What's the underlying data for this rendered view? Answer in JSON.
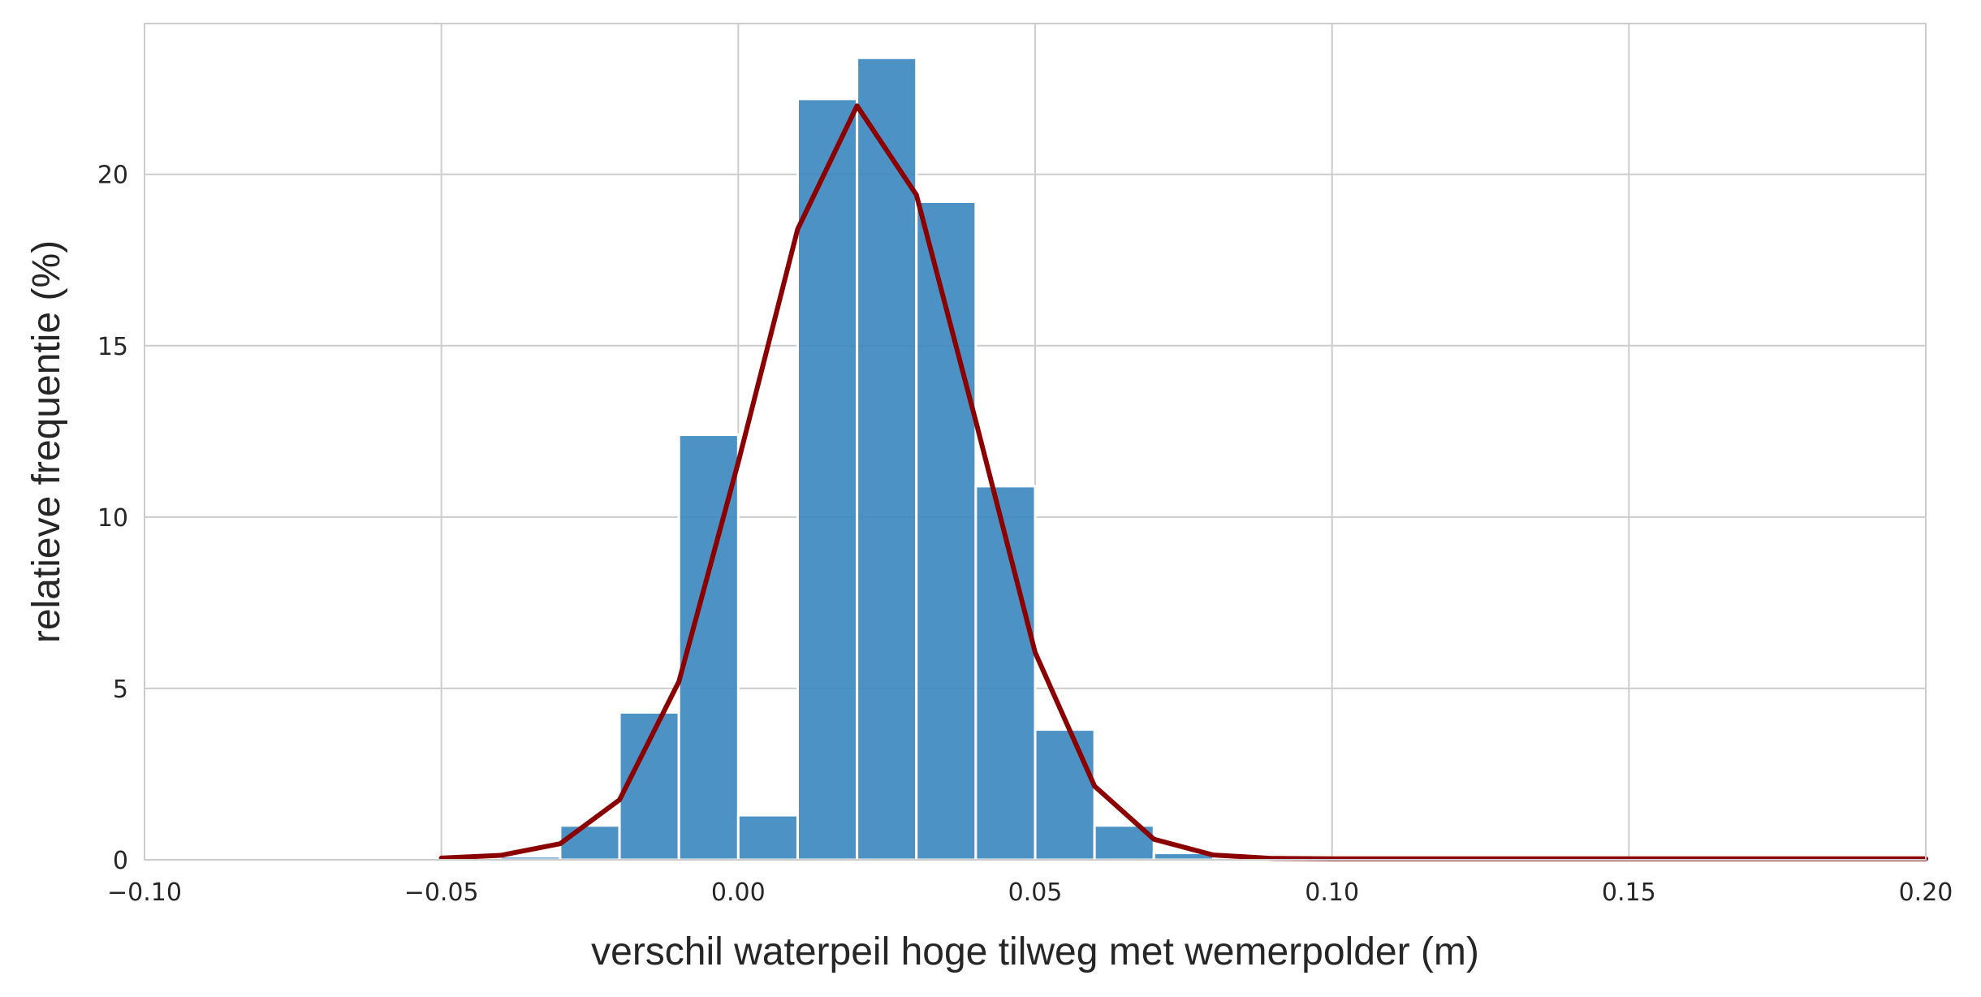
{
  "chart_data": {
    "type": "bar",
    "subtype": "histogram-with-density-line",
    "title": "",
    "xlabel": "verschil waterpeil hoge tilweg met wemerpolder (m)",
    "ylabel": "relatieve frequentie (%)",
    "xlim": [
      -0.1,
      0.2
    ],
    "ylim": [
      0,
      24.4
    ],
    "grid": true,
    "x_ticks": [
      -0.1,
      -0.05,
      0.0,
      0.05,
      0.1,
      0.15,
      0.2
    ],
    "x_tick_labels": [
      "−0.10",
      "−0.05",
      "0.00",
      "0.05",
      "0.10",
      "0.15",
      "0.20"
    ],
    "y_ticks": [
      0,
      5,
      10,
      15,
      20
    ],
    "y_tick_labels": [
      "0",
      "5",
      "10",
      "15",
      "20"
    ],
    "histogram": {
      "color": "#3a86bf",
      "bins": [
        {
          "x0": -0.04,
          "x1": -0.03,
          "value": 0.1
        },
        {
          "x0": -0.03,
          "x1": -0.02,
          "value": 1.0
        },
        {
          "x0": -0.02,
          "x1": -0.01,
          "value": 4.3
        },
        {
          "x0": -0.01,
          "x1": 0.0,
          "value": 12.4
        },
        {
          "x0": 0.0,
          "x1": 0.01,
          "value": 1.3
        },
        {
          "x0": 0.01,
          "x1": 0.02,
          "value": 22.2
        },
        {
          "x0": 0.02,
          "x1": 0.03,
          "value": 23.4
        },
        {
          "x0": 0.03,
          "x1": 0.04,
          "value": 19.2
        },
        {
          "x0": 0.04,
          "x1": 0.05,
          "value": 10.9
        },
        {
          "x0": 0.05,
          "x1": 0.06,
          "value": 3.8
        },
        {
          "x0": 0.06,
          "x1": 0.07,
          "value": 1.0
        },
        {
          "x0": 0.07,
          "x1": 0.08,
          "value": 0.2
        }
      ]
    },
    "line": {
      "color": "#8b0000",
      "x": [
        -0.05,
        -0.04,
        -0.03,
        -0.02,
        -0.01,
        0.0,
        0.01,
        0.02,
        0.03,
        0.04,
        0.05,
        0.06,
        0.07,
        0.08,
        0.09,
        0.1,
        0.11,
        0.12,
        0.13,
        0.14,
        0.15,
        0.16,
        0.17,
        0.18,
        0.19,
        0.2
      ],
      "y": [
        0.05,
        0.13,
        0.47,
        1.75,
        5.2,
        11.6,
        18.4,
        22.0,
        19.4,
        12.8,
        6.05,
        2.15,
        0.6,
        0.14,
        0.04,
        0.03,
        0.03,
        0.03,
        0.03,
        0.03,
        0.03,
        0.03,
        0.03,
        0.03,
        0.03,
        0.03
      ]
    }
  }
}
